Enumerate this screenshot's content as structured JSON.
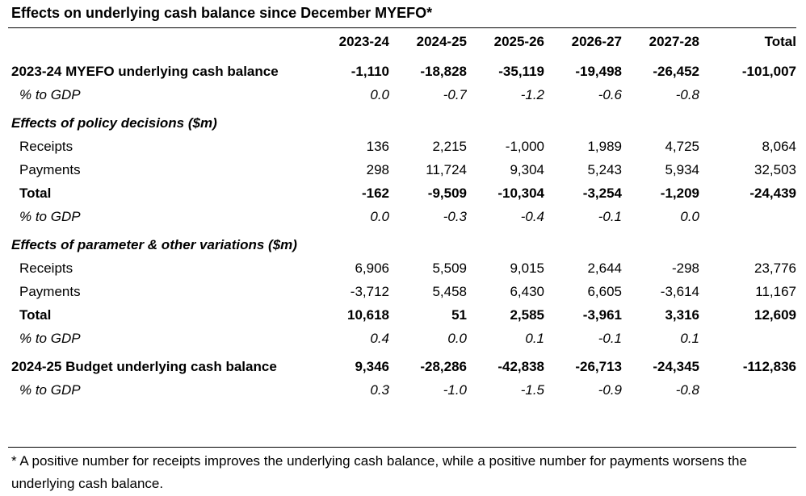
{
  "title": "Effects on underlying cash balance since December MYEFO*",
  "columns": [
    "",
    "2023-24",
    "2024-25",
    "2025-26",
    "2026-27",
    "2027-28",
    "Total"
  ],
  "myefo": {
    "label": "2023-24 MYEFO underlying cash balance",
    "values": [
      "-1,110",
      "-18,828",
      "-35,119",
      "-19,498",
      "-26,452",
      "-101,007"
    ],
    "pct_label": "% to GDP",
    "pct": [
      "0.0",
      "-0.7",
      "-1.2",
      "-0.6",
      "-0.8",
      ""
    ]
  },
  "policy": {
    "heading": "Effects of policy decisions ($m)",
    "receipts_label": "Receipts",
    "receipts": [
      "136",
      "2,215",
      "-1,000",
      "1,989",
      "4,725",
      "8,064"
    ],
    "payments_label": "Payments",
    "payments": [
      "298",
      "11,724",
      "9,304",
      "5,243",
      "5,934",
      "32,503"
    ],
    "total_label": "Total",
    "total": [
      "-162",
      "-9,509",
      "-10,304",
      "-3,254",
      "-1,209",
      "-24,439"
    ],
    "pct_label": "% to GDP",
    "pct": [
      "0.0",
      "-0.3",
      "-0.4",
      "-0.1",
      "0.0",
      ""
    ]
  },
  "parameter": {
    "heading": "Effects of parameter & other variations ($m)",
    "receipts_label": "Receipts",
    "receipts": [
      "6,906",
      "5,509",
      "9,015",
      "2,644",
      "-298",
      "23,776"
    ],
    "payments_label": "Payments",
    "payments": [
      "-3,712",
      "5,458",
      "6,430",
      "6,605",
      "-3,614",
      "11,167"
    ],
    "total_label": "Total",
    "total": [
      "10,618",
      "51",
      "2,585",
      "-3,961",
      "3,316",
      "12,609"
    ],
    "pct_label": "% to GDP",
    "pct": [
      "0.4",
      "0.0",
      "0.1",
      "-0.1",
      "0.1",
      ""
    ]
  },
  "budget": {
    "label": "2024-25 Budget underlying cash balance",
    "values": [
      "9,346",
      "-28,286",
      "-42,838",
      "-26,713",
      "-24,345",
      "-112,836"
    ],
    "pct_label": "% to GDP",
    "pct": [
      "0.3",
      "-1.0",
      "-1.5",
      "-0.9",
      "-0.8",
      ""
    ]
  },
  "footnote": "* A positive number for receipts improves the underlying cash balance, while a positive number for payments worsens the underlying cash balance."
}
